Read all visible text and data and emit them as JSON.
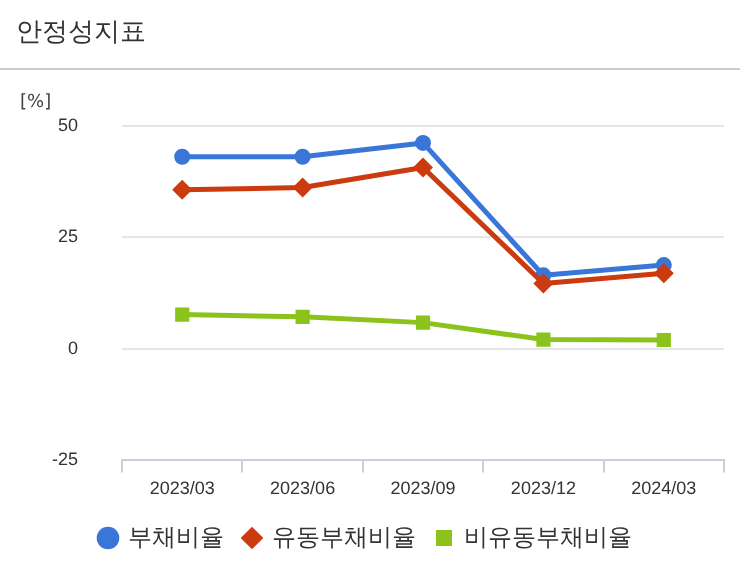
{
  "chart_data": {
    "type": "line",
    "title": "안정성지표",
    "ylabel": "[%]",
    "categories": [
      "2023/03",
      "2023/06",
      "2023/09",
      "2023/12",
      "2024/03"
    ],
    "series": [
      {
        "name": "부채비율",
        "color": "#3a75d8",
        "marker": "circle",
        "values": [
          43.1,
          43.1,
          46.2,
          16.5,
          18.8
        ]
      },
      {
        "name": "유동부채비율",
        "color": "#cc3a10",
        "marker": "diamond",
        "values": [
          35.7,
          36.2,
          40.7,
          14.7,
          17.0
        ]
      },
      {
        "name": "비유동부채비율",
        "color": "#8cc21c",
        "marker": "square",
        "values": [
          7.7,
          7.2,
          5.9,
          2.1,
          2.0
        ]
      }
    ],
    "ylim": [
      -25,
      50
    ],
    "yticks": [
      -25,
      0,
      25,
      50
    ],
    "grid": "y",
    "legend": "bottom"
  }
}
